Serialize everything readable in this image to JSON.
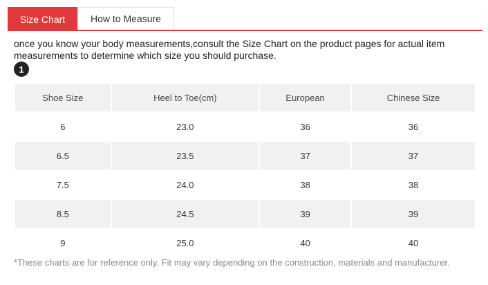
{
  "tabs": {
    "size_chart": "Size Chart",
    "how_to_measure": "How to Measure"
  },
  "intro_text": "once you know your body measurements,consult the Size Chart on the product pages for actual item measurements to determine which size you should purchase.",
  "step_badge": "1",
  "table": {
    "headers": [
      "Shoe Size",
      "Heel to Toe(cm)",
      "European",
      "Chinese Size"
    ],
    "rows": [
      [
        "6",
        "23.0",
        "36",
        "36"
      ],
      [
        "6.5",
        "23.5",
        "37",
        "37"
      ],
      [
        "7.5",
        "24.0",
        "38",
        "38"
      ],
      [
        "8.5",
        "24.5",
        "39",
        "39"
      ],
      [
        "9",
        "25.0",
        "40",
        "40"
      ]
    ]
  },
  "footnote": "*These charts are for reference only. Fit may vary depending on the construction, materials and manufacturer.",
  "colors": {
    "accent": "#e4393c",
    "header_bg": "#f1f1f1"
  }
}
